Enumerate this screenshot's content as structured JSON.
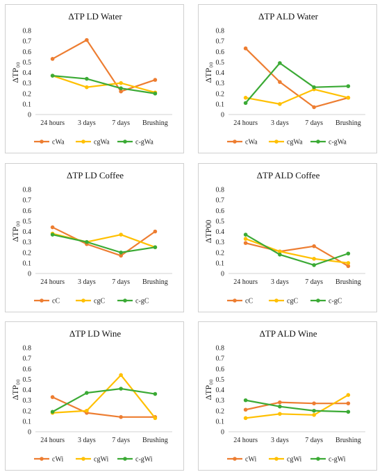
{
  "colors": {
    "orange": "#ED7D31",
    "yellow": "#FFC000",
    "green": "#3BAA35"
  },
  "chart_data": [
    {
      "type": "line",
      "title": "ΔTP LD Water",
      "ylabel": "ΔTP₀₀",
      "xlabel": "",
      "ylim": [
        0,
        0.8
      ],
      "yticks": [
        "0",
        "0.1",
        "0.2",
        "0.3",
        "0.4",
        "0.5",
        "0.6",
        "0.7",
        "0.8"
      ],
      "categories": [
        "24 hours",
        "3 days",
        "7 days",
        "Brushing"
      ],
      "grid": false,
      "legend": "bottom",
      "series": [
        {
          "name": "cWa",
          "color": "#ED7D31",
          "values": [
            0.53,
            0.71,
            0.22,
            0.33
          ]
        },
        {
          "name": "cgWa",
          "color": "#FFC000",
          "values": [
            0.37,
            0.26,
            0.3,
            0.21
          ]
        },
        {
          "name": "c-gWa",
          "color": "#3BAA35",
          "values": [
            0.37,
            0.34,
            0.25,
            0.2
          ]
        }
      ]
    },
    {
      "type": "line",
      "title": "ΔTP ALD Water",
      "ylabel": "ΔTP₀₀",
      "xlabel": "",
      "ylim": [
        0,
        0.8
      ],
      "yticks": [
        "0",
        "0.1",
        "0.2",
        "0.3",
        "0.4",
        "0.5",
        "0.6",
        "0.7",
        "0.8"
      ],
      "categories": [
        "24 hours",
        "3 days",
        "7 days",
        "Brushing"
      ],
      "grid": false,
      "legend": "bottom",
      "series": [
        {
          "name": "cWa",
          "color": "#ED7D31",
          "values": [
            0.63,
            0.31,
            0.07,
            0.16
          ]
        },
        {
          "name": "cgWa",
          "color": "#FFC000",
          "values": [
            0.16,
            0.1,
            0.24,
            0.16
          ]
        },
        {
          "name": "c-gWa",
          "color": "#3BAA35",
          "values": [
            0.11,
            0.49,
            0.26,
            0.27
          ]
        }
      ]
    },
    {
      "type": "line",
      "title": "ΔTP LD Coffee",
      "ylabel": "ΔTP₀₀",
      "xlabel": "",
      "ylim": [
        0,
        0.8
      ],
      "yticks": [
        "0",
        "0.1",
        "0.2",
        "0.3",
        "0.4",
        "0.5",
        "0.6",
        "0.7",
        "0.8"
      ],
      "categories": [
        "24 hours",
        "3 days",
        "7 days",
        "Brushing"
      ],
      "grid": false,
      "legend": "bottom",
      "series": [
        {
          "name": "cC",
          "color": "#ED7D31",
          "values": [
            0.44,
            0.28,
            0.17,
            0.4
          ]
        },
        {
          "name": "cgC",
          "color": "#FFC000",
          "values": [
            0.38,
            0.3,
            0.37,
            0.25
          ]
        },
        {
          "name": "c-gC",
          "color": "#3BAA35",
          "values": [
            0.37,
            0.3,
            0.2,
            0.25
          ]
        }
      ]
    },
    {
      "type": "line",
      "title": "ΔTP ALD Coffee",
      "ylabel": "ΔTP00",
      "xlabel": "",
      "ylim": [
        0,
        0.8
      ],
      "yticks": [
        "0",
        "0.1",
        "0.2",
        "0.3",
        "0.4",
        "0.5",
        "0.6",
        "0.7",
        "0.8"
      ],
      "categories": [
        "24 hours",
        "3 days",
        "7 days",
        "Brushing"
      ],
      "grid": false,
      "legend": "bottom",
      "series": [
        {
          "name": "cC",
          "color": "#ED7D31",
          "values": [
            0.29,
            0.21,
            0.26,
            0.07
          ]
        },
        {
          "name": "cgC",
          "color": "#FFC000",
          "values": [
            0.33,
            0.21,
            0.14,
            0.1
          ]
        },
        {
          "name": "c-gC",
          "color": "#3BAA35",
          "values": [
            0.37,
            0.18,
            0.08,
            0.19
          ]
        }
      ]
    },
    {
      "type": "line",
      "title": "ΔTP LD Wine",
      "ylabel": "ΔTP₀₀",
      "xlabel": "",
      "ylim": [
        0,
        0.8
      ],
      "yticks": [
        "0",
        "0.1",
        "0.2",
        "0.3",
        "0.4",
        "0.5",
        "0.6",
        "0.7",
        "0.8"
      ],
      "categories": [
        "24 hours",
        "3 days",
        "7 days",
        "Brushing"
      ],
      "grid": false,
      "legend": "bottom",
      "series": [
        {
          "name": "cWi",
          "color": "#ED7D31",
          "values": [
            0.33,
            0.18,
            0.14,
            0.14
          ]
        },
        {
          "name": "cgWi",
          "color": "#FFC000",
          "values": [
            0.18,
            0.2,
            0.54,
            0.13
          ]
        },
        {
          "name": "c-gWi",
          "color": "#3BAA35",
          "values": [
            0.19,
            0.37,
            0.41,
            0.36
          ]
        }
      ]
    },
    {
      "type": "line",
      "title": "ΔTP ALD Wine",
      "ylabel": "ΔTP₀₀",
      "xlabel": "",
      "ylim": [
        0,
        0.8
      ],
      "yticks": [
        "0",
        "0.1",
        "0.2",
        "0.3",
        "0.4",
        "0.5",
        "0.6",
        "0.7",
        "0.8"
      ],
      "categories": [
        "24 hours",
        "3 days",
        "7 days",
        "Brushing"
      ],
      "grid": false,
      "legend": "bottom",
      "series": [
        {
          "name": "cWi",
          "color": "#ED7D31",
          "values": [
            0.21,
            0.28,
            0.27,
            0.27
          ]
        },
        {
          "name": "cgWi",
          "color": "#FFC000",
          "values": [
            0.13,
            0.17,
            0.16,
            0.35
          ]
        },
        {
          "name": "c-gWi",
          "color": "#3BAA35",
          "values": [
            0.3,
            0.24,
            0.2,
            0.19
          ]
        }
      ]
    }
  ]
}
